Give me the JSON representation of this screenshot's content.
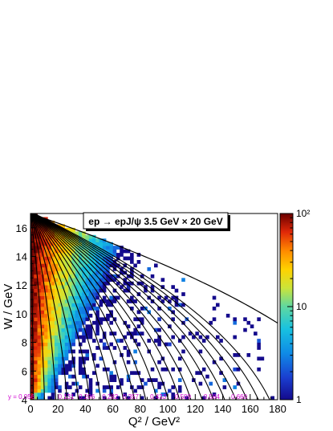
{
  "chart_data": {
    "type": "heatmap",
    "title": "ep → epJ/ψ 3.5 GeV × 20 GeV",
    "xlabel": "Q² / GeV²",
    "ylabel": "W / GeV",
    "xlim": [
      0,
      180
    ],
    "ylim": [
      4,
      17
    ],
    "x_ticks": [
      "0",
      "20",
      "40",
      "60",
      "80",
      "100",
      "120",
      "140",
      "160",
      "180"
    ],
    "x_tick_values": [
      0,
      20,
      40,
      60,
      80,
      100,
      120,
      140,
      160,
      180
    ],
    "y_ticks": [
      "4",
      "6",
      "8",
      "10",
      "12",
      "14",
      "16"
    ],
    "y_tick_values": [
      4,
      6,
      8,
      10,
      12,
      14,
      16
    ],
    "colorbar": {
      "scale": "log",
      "range": [
        1,
        100
      ],
      "tick_labels": [
        "1",
        "10",
        "10²"
      ],
      "tick_values": [
        1,
        10,
        100
      ]
    },
    "y_contour_labels": [
      {
        "text": "y = 0.056",
        "q2": 5
      },
      {
        "text": "0.131",
        "q2": 26
      },
      {
        "text": "0.206",
        "q2": 41
      },
      {
        "text": "0.282",
        "q2": 58
      },
      {
        "text": "0.357",
        "q2": 73
      },
      {
        "text": "0.433",
        "q2": 93
      },
      {
        "text": "0.509",
        "q2": 111
      },
      {
        "text": "0.584",
        "q2": 132
      },
      {
        "text": "0.660",
        "q2": 152
      }
    ],
    "grid": false,
    "legend": "none",
    "colors": {
      "text": "#000000",
      "contour_labels": "#d000d0",
      "contour_lines": "#000000"
    }
  }
}
